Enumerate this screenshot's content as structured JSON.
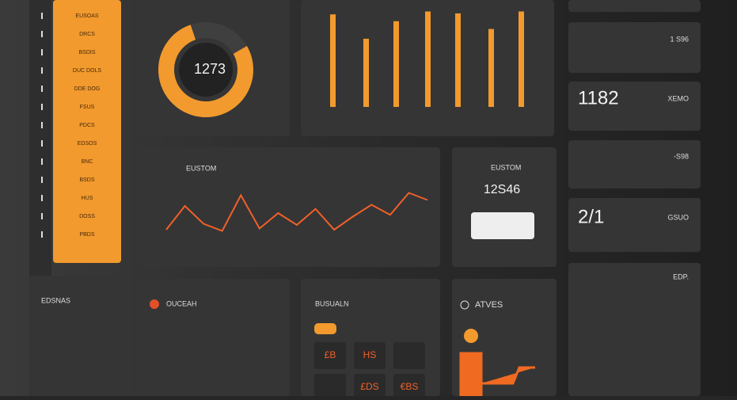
{
  "sidebar": {
    "items": [
      "EUSOAS",
      "DRCS",
      "BSDIS",
      "DUC DOLS",
      "DDE DOG",
      "FSUS",
      "PDCS",
      "EDSOS",
      "BNC",
      "BSDS",
      "HUS",
      "DOSS",
      "PBDS"
    ]
  },
  "donut": {
    "label": "1273",
    "percent": 78
  },
  "bars": {
    "values": [
      95,
      70,
      88,
      98,
      96,
      80,
      98
    ]
  },
  "line": {
    "title": "EUSTOM",
    "values": [
      20,
      60,
      30,
      18,
      78,
      22,
      48,
      28,
      55,
      20,
      42,
      62,
      45,
      82,
      70
    ]
  },
  "stat_card": {
    "title": "EUSTOM",
    "value": "12S46"
  },
  "right_cards": [
    {
      "value": "1 S96"
    },
    {
      "value": "1182",
      "label": "XEMO"
    },
    {
      "value": "-S98"
    },
    {
      "value": "2/1",
      "label": "GSUO"
    },
    {
      "value": "EDP."
    }
  ],
  "bottom": {
    "list_title": "EDSNAS",
    "table_title": "OUCEAH",
    "grid_title": "BUSUALN",
    "card_title": "ATVES",
    "grid_cells": [
      "£B",
      "HS",
      "",
      "",
      "£DS",
      "€BS"
    ]
  }
}
